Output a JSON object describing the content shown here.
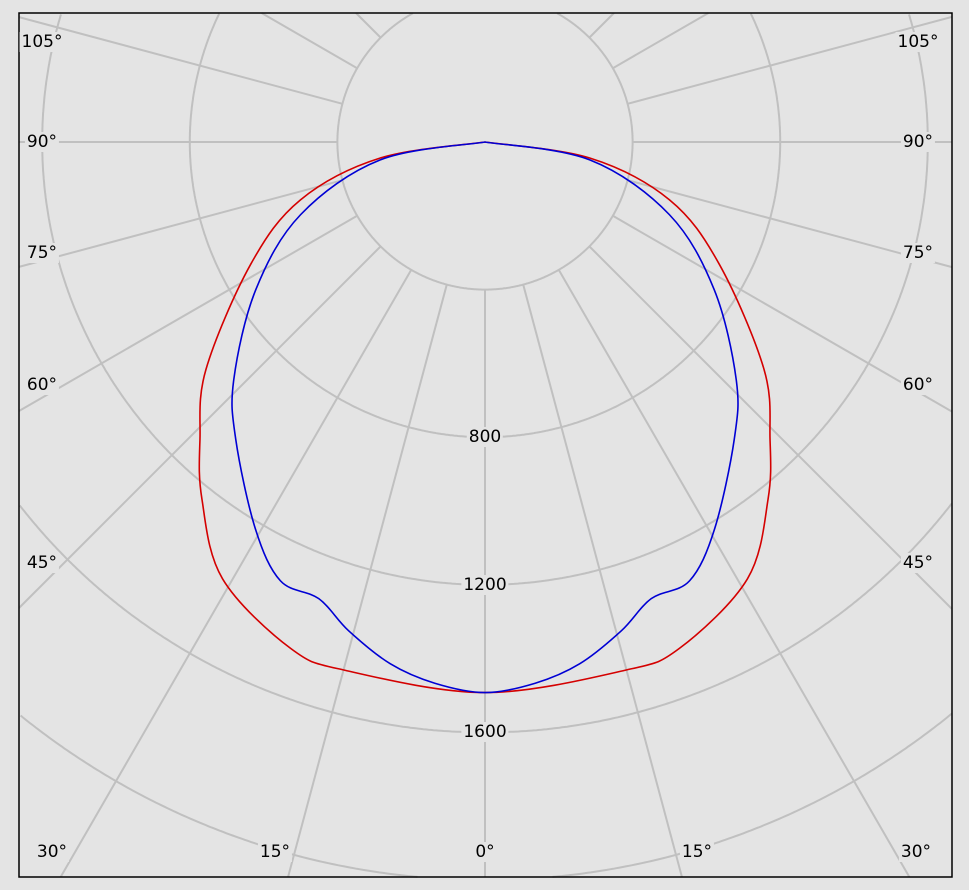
{
  "chart_data": {
    "type": "polar-line",
    "title": "",
    "angular_unit": "degrees",
    "radial_ticks": [
      800,
      1200,
      1600
    ],
    "radial_grid": [
      400,
      800,
      1200,
      1600,
      2000,
      2400,
      2800
    ],
    "angular_grid_step": 15,
    "angle_labels_left": [
      "105°",
      "90°",
      "75°",
      "60°",
      "45°"
    ],
    "angle_labels_bottom": [
      "30°",
      "15°",
      "0°",
      "15°",
      "30°"
    ],
    "angle_labels_right": [
      "105°",
      "90°",
      "75°",
      "60°",
      "45°"
    ],
    "radial_labels": [
      "800",
      "1200",
      "1600"
    ],
    "grid": true,
    "symmetric": true,
    "series": [
      {
        "color": "#d40000",
        "angles": [
          0,
          14.8,
          21,
          31,
          38.4,
          43.8,
          50.8,
          62.4,
          72.6,
          81.3,
          90
        ],
        "values": [
          1492,
          1481,
          1470,
          1381,
          1235,
          1116,
          976,
          717,
          524,
          287,
          0
        ]
      },
      {
        "color": "#0000d4",
        "angles": [
          0,
          5.3,
          10.3,
          15.6,
          20,
          25,
          30.7,
          40,
          46.6,
          57.2,
          68.5,
          80.3,
          90
        ],
        "values": [
          1492,
          1473,
          1437,
          1375,
          1317,
          1312,
          1219,
          1051,
          937,
          739,
          537,
          288,
          0
        ]
      }
    ]
  },
  "colors": {
    "background": "#e4e4e4",
    "grid": "#c0c0c0",
    "frame": "#000000"
  }
}
